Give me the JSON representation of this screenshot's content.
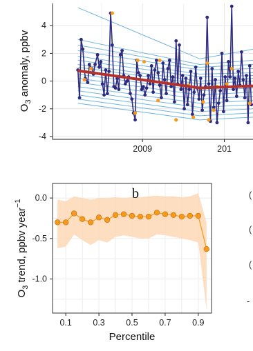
{
  "chart_data": [
    {
      "type": "line",
      "panel": "a",
      "ylabel_main": "O",
      "ylabel_sub": "3",
      "ylabel_rest": " anomaly, ppbv",
      "xlabel": "",
      "x_ticks": [
        "2009",
        "201"
      ],
      "y_ticks": [
        "4",
        "2",
        "0",
        "-2",
        "-4"
      ],
      "ylim": [
        -4.2,
        5.6
      ],
      "xlim": [
        2007.9,
        2010.35
      ],
      "grid": true,
      "colors": {
        "series": "#2e2a80",
        "highlight": "#f59a1b",
        "trend": "#b2322e",
        "quantile": "#6fb4de"
      },
      "series": [
        {
          "name": "",
          "x": [
            2008.21,
            2008.23,
            2008.25,
            2008.27,
            2008.3,
            2008.33,
            2008.35,
            2008.38,
            2008.4,
            2008.42,
            2008.45,
            2008.47,
            2008.49,
            2008.51,
            2008.53,
            2008.55,
            2008.57,
            2008.59,
            2008.61,
            2008.63,
            2008.65,
            2008.67,
            2008.69,
            2008.71,
            2008.73,
            2008.75,
            2008.77,
            2008.79,
            2008.81,
            2008.83,
            2008.85,
            2008.87,
            2008.89,
            2008.91,
            2008.93,
            2008.95,
            2008.97,
            2008.99,
            2009.01,
            2009.03,
            2009.05,
            2009.07,
            2009.09,
            2009.11,
            2009.13,
            2009.15,
            2009.17,
            2009.19,
            2009.21,
            2009.23,
            2009.25,
            2009.27,
            2009.29,
            2009.31,
            2009.33,
            2009.35,
            2009.37,
            2009.39,
            2009.41,
            2009.43,
            2009.45,
            2009.47,
            2009.49,
            2009.51,
            2009.53,
            2009.55,
            2009.57,
            2009.59,
            2009.61,
            2009.63,
            2009.65,
            2009.67,
            2009.69,
            2009.71,
            2009.73,
            2009.75,
            2009.77,
            2009.79,
            2009.81,
            2009.83,
            2009.85,
            2009.87,
            2009.89,
            2009.91,
            2009.93,
            2009.95,
            2009.97,
            2009.99,
            2010.01,
            2010.03,
            2010.05,
            2010.07,
            2010.09,
            2010.11,
            2010.13,
            2010.15,
            2010.17,
            2010.19,
            2010.21,
            2010.23,
            2010.25,
            2010.27,
            2010.29,
            2010.31,
            2010.33
          ],
          "y": [
            0.8,
            -1.2,
            3.0,
            2.3,
            0.2,
            -0.1,
            1.2,
            0.9,
            0.5,
            1.2,
            1.9,
            1.0,
            1.4,
            -0.2,
            -1.0,
            0.8,
            -0.9,
            0.7,
            4.9,
            2.6,
            -0.4,
            -0.5,
            0.2,
            -0.6,
            1.9,
            2.2,
            0.4,
            -0.2,
            0.0,
            0.3,
            -0.9,
            -1.3,
            -2.3,
            -2.8,
            1.5,
            0.6,
            0.4,
            -0.6,
            -0.4,
            -1.0,
            -0.5,
            0.4,
            -0.2,
            1.1,
            -0.8,
            0.8,
            1.5,
            0.6,
            -0.3,
            -1.2,
            1.3,
            0.1,
            -0.9,
            0.9,
            1.5,
            -0.4,
            0.3,
            -1.5,
            2.9,
            -0.2,
            2.6,
            -0.6,
            0.4,
            -2.0,
            0.2,
            -1.7,
            -0.6,
            0.7,
            -2.4,
            -0.8,
            1.0,
            -0.5,
            -1.3,
            0.2,
            -2.1,
            -1.0,
            -0.4,
            4.6,
            -0.2,
            -2.9,
            0.9,
            -1.9,
            0.1,
            -3.0,
            -1.6,
            -0.7,
            2.0,
            -2.2,
            0.3,
            -1.4,
            1.4,
            0.3,
            5.4,
            -0.6,
            0.2,
            -1.1,
            0.7,
            -0.3,
            2.1,
            0.1,
            -1.2,
            0.4,
            -3.0,
            1.1,
            -1.7
          ],
          "highlight_x": [
            2008.29,
            2008.37,
            2008.63,
            2008.91,
            2008.94,
            2009.02,
            2009.19,
            2009.21,
            2009.41,
            2009.56,
            2009.62,
            2009.74,
            2009.79,
            2009.81,
            2009.87,
            2009.91,
            2010.03,
            2010.09,
            2010.31
          ],
          "highlight_y": [
            0.1,
            0.9,
            4.9,
            -2.3,
            1.5,
            1.4,
            -1.4,
            1.5,
            -2.8,
            -0.3,
            -2.6,
            -1.5,
            1.3,
            -2.8,
            -2.1,
            -0.4,
            -0.2,
            0.9,
            -1.6
          ]
        },
        {
          "name": "",
          "x": [
            2008.21,
            2009.7,
            2010.35
          ],
          "y": [
            0.75,
            -0.5,
            -0.35
          ]
        }
      ],
      "quantile_lines": [
        {
          "x": [
            2008.21,
            2009.7,
            2010.35
          ],
          "y": [
            5.3,
            1.6,
            2.3
          ]
        },
        {
          "x": [
            2008.21,
            2009.7,
            2010.35
          ],
          "y": [
            3.0,
            1.2,
            1.5
          ]
        },
        {
          "x": [
            2008.21,
            2009.7,
            2010.35
          ],
          "y": [
            2.6,
            1.0,
            1.2
          ]
        },
        {
          "x": [
            2008.21,
            2009.7,
            2010.35
          ],
          "y": [
            2.2,
            0.8,
            0.9
          ]
        },
        {
          "x": [
            2008.21,
            2009.7,
            2010.35
          ],
          "y": [
            1.8,
            0.5,
            0.6
          ]
        },
        {
          "x": [
            2008.21,
            2009.7,
            2010.35
          ],
          "y": [
            1.5,
            0.3,
            0.4
          ]
        },
        {
          "x": [
            2008.21,
            2009.7,
            2010.35
          ],
          "y": [
            1.2,
            0.0,
            0.2
          ]
        },
        {
          "x": [
            2008.21,
            2009.7,
            2010.35
          ],
          "y": [
            1.0,
            -0.2,
            0.0
          ]
        },
        {
          "x": [
            2008.21,
            2009.7,
            2010.35
          ],
          "y": [
            0.5,
            -0.7,
            -0.5
          ]
        },
        {
          "x": [
            2008.21,
            2009.7,
            2010.35
          ],
          "y": [
            0.2,
            -1.0,
            -0.8
          ]
        },
        {
          "x": [
            2008.21,
            2009.7,
            2010.35
          ],
          "y": [
            -0.1,
            -1.3,
            -1.1
          ]
        },
        {
          "x": [
            2008.21,
            2009.7,
            2010.35
          ],
          "y": [
            -0.4,
            -1.6,
            -1.4
          ]
        },
        {
          "x": [
            2008.21,
            2009.7,
            2010.35
          ],
          "y": [
            -0.7,
            -1.9,
            -1.7
          ]
        },
        {
          "x": [
            2008.21,
            2009.7,
            2010.35
          ],
          "y": [
            -1.0,
            -2.2,
            -2.0
          ]
        },
        {
          "x": [
            2008.21,
            2009.7,
            2010.35
          ],
          "y": [
            -1.3,
            -2.5,
            -2.3
          ]
        },
        {
          "x": [
            2008.21,
            2009.7,
            2010.35
          ],
          "y": [
            -1.6,
            -2.8,
            -2.6
          ]
        }
      ]
    },
    {
      "type": "line",
      "panel": "b",
      "panel_label": "b",
      "ylabel_main": "O",
      "ylabel_sub": "3",
      "ylabel_rest": " trend, ppbv year",
      "ylabel_sup": "−1",
      "xlabel": "Percentile",
      "x_ticks": [
        "0.1",
        "0.3",
        "0.5",
        "0.7",
        "0.9"
      ],
      "y_ticks": [
        "0.0",
        "-0.5",
        "-1.0"
      ],
      "xlim": [
        0.02,
        0.98
      ],
      "ylim": [
        -1.42,
        0.18
      ],
      "grid": true,
      "colors": {
        "points": "#f59a1b",
        "band": "#fdd8b5",
        "outline": "#d0781a"
      },
      "series": [
        {
          "name": "",
          "x": [
            0.05,
            0.1,
            0.15,
            0.2,
            0.25,
            0.3,
            0.35,
            0.4,
            0.45,
            0.5,
            0.55,
            0.6,
            0.65,
            0.7,
            0.75,
            0.8,
            0.85,
            0.9,
            0.95
          ],
          "y": [
            -0.3,
            -0.3,
            -0.19,
            -0.26,
            -0.3,
            -0.24,
            -0.27,
            -0.21,
            -0.2,
            -0.22,
            -0.23,
            -0.23,
            -0.18,
            -0.2,
            -0.21,
            -0.23,
            -0.22,
            -0.22,
            -0.63
          ],
          "ci_upper": [
            -0.02,
            -0.04,
            0.02,
            0.0,
            -0.02,
            0.0,
            0.0,
            0.01,
            0.0,
            0.01,
            0.01,
            0.02,
            0.03,
            0.02,
            0.02,
            0.01,
            0.02,
            0.06,
            -0.3
          ],
          "ci_lower": [
            -0.62,
            -0.6,
            -0.45,
            -0.52,
            -0.58,
            -0.52,
            -0.55,
            -0.48,
            -0.46,
            -0.48,
            -0.5,
            -0.5,
            -0.45,
            -0.46,
            -0.48,
            -0.5,
            -0.52,
            -0.55,
            -1.38
          ]
        }
      ]
    }
  ],
  "right_edge_fragments": [
    "(",
    "(",
    "(",
    "-"
  ]
}
